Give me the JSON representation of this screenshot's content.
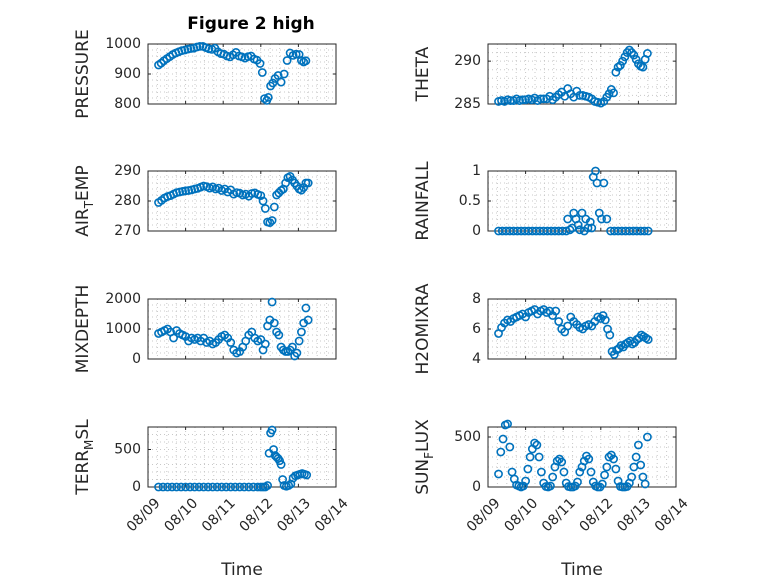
{
  "figure": {
    "title": "Figure 2 high"
  },
  "chart_data": [
    {
      "type": "scatter",
      "panel": "pressure",
      "title": "Figure 2 high",
      "ylabel": "PRESSURE",
      "xlabel": "",
      "ylim": [
        800,
        1000
      ],
      "yticks": [
        800,
        900,
        1000
      ],
      "xlim": [
        0,
        5
      ],
      "xticks": [
        0,
        1,
        2,
        3,
        4,
        5
      ],
      "xticklabels": [],
      "grid": true,
      "x": [
        0.28,
        0.35,
        0.42,
        0.5,
        0.58,
        0.66,
        0.74,
        0.82,
        0.9,
        0.98,
        1.06,
        1.14,
        1.22,
        1.3,
        1.38,
        1.46,
        1.54,
        1.62,
        1.7,
        1.78,
        1.86,
        1.94,
        2.02,
        2.1,
        2.18,
        2.26,
        2.34,
        2.42,
        2.5,
        2.58,
        2.66,
        2.74,
        2.82,
        2.9,
        2.98,
        3.04,
        3.1,
        3.16,
        3.2,
        3.26,
        3.32,
        3.38,
        3.46,
        3.54,
        3.62,
        3.7,
        3.78,
        3.86,
        3.94,
        4.02,
        4.08,
        4.14,
        4.2
      ],
      "y": [
        930,
        936,
        944,
        951,
        958,
        965,
        970,
        974,
        978,
        980,
        983,
        985,
        986,
        990,
        992,
        992,
        988,
        984,
        982,
        986,
        974,
        968,
        966,
        960,
        957,
        964,
        972,
        960,
        957,
        953,
        958,
        960,
        950,
        946,
        935,
        905,
        818,
        812,
        822,
        860,
        870,
        885,
        895,
        873,
        900,
        945,
        970,
        962,
        966,
        965,
        945,
        940,
        944
      ]
    },
    {
      "type": "scatter",
      "panel": "theta",
      "ylabel": "THETA",
      "xlabel": "",
      "ylim": [
        285,
        292
      ],
      "yticks": [
        285,
        290
      ],
      "xlim": [
        0,
        5
      ],
      "xticks": [
        0,
        1,
        2,
        3,
        4,
        5
      ],
      "xticklabels": [],
      "grid": true,
      "x": [
        0.28,
        0.36,
        0.44,
        0.52,
        0.6,
        0.68,
        0.76,
        0.84,
        0.92,
        1.0,
        1.08,
        1.16,
        1.24,
        1.32,
        1.4,
        1.48,
        1.56,
        1.64,
        1.72,
        1.8,
        1.88,
        1.96,
        2.04,
        2.12,
        2.2,
        2.28,
        2.36,
        2.44,
        2.52,
        2.6,
        2.68,
        2.76,
        2.84,
        2.92,
        3.0,
        3.08,
        3.16,
        3.22,
        3.28,
        3.34,
        3.4,
        3.46,
        3.52,
        3.58,
        3.64,
        3.7,
        3.76,
        3.82,
        3.88,
        3.94,
        4.0,
        4.06,
        4.12,
        4.18,
        4.24
      ],
      "y": [
        285.3,
        285.4,
        285.3,
        285.5,
        285.4,
        285.4,
        285.6,
        285.4,
        285.5,
        285.5,
        285.6,
        285.5,
        285.7,
        285.4,
        285.6,
        285.6,
        285.6,
        285.9,
        285.5,
        285.8,
        286.1,
        286.4,
        285.9,
        286.8,
        286.2,
        285.8,
        286.5,
        286.0,
        286.0,
        285.9,
        285.8,
        285.6,
        285.3,
        285.2,
        285.1,
        285.3,
        285.8,
        286.2,
        286.7,
        286.3,
        288.7,
        289.3,
        289.5,
        290.0,
        290.5,
        291.0,
        291.3,
        291.0,
        290.7,
        290.2,
        289.7,
        289.4,
        289.3,
        290.2,
        290.9
      ]
    },
    {
      "type": "scatter",
      "panel": "air_temp",
      "ylabel": "AIR_TEMP",
      "xlabel": "",
      "ylim": [
        270,
        290
      ],
      "yticks": [
        270,
        280,
        290
      ],
      "xlim": [
        0,
        5
      ],
      "xticks": [
        0,
        1,
        2,
        3,
        4,
        5
      ],
      "xticklabels": [],
      "grid": true,
      "x": [
        0.28,
        0.36,
        0.44,
        0.52,
        0.6,
        0.68,
        0.76,
        0.84,
        0.92,
        1.0,
        1.08,
        1.16,
        1.24,
        1.32,
        1.4,
        1.48,
        1.56,
        1.64,
        1.72,
        1.8,
        1.88,
        1.96,
        2.04,
        2.12,
        2.2,
        2.28,
        2.36,
        2.44,
        2.52,
        2.6,
        2.68,
        2.76,
        2.84,
        2.92,
        3.0,
        3.06,
        3.12,
        3.18,
        3.24,
        3.3,
        3.36,
        3.42,
        3.48,
        3.54,
        3.6,
        3.66,
        3.72,
        3.78,
        3.84,
        3.9,
        3.96,
        4.02,
        4.08,
        4.14,
        4.2,
        4.26
      ],
      "y": [
        279.5,
        280.2,
        281.0,
        281.5,
        281.8,
        282.3,
        282.8,
        283.0,
        283.2,
        283.4,
        283.5,
        283.7,
        284.0,
        284.2,
        284.6,
        285.0,
        284.8,
        284.3,
        284.7,
        284.0,
        284.3,
        283.5,
        284.0,
        283.0,
        283.7,
        282.3,
        282.8,
        282.6,
        282.0,
        282.3,
        281.6,
        282.5,
        282.7,
        282.2,
        281.8,
        280.0,
        277.5,
        273.0,
        272.8,
        273.5,
        278.0,
        282.0,
        282.7,
        283.5,
        284.0,
        286.0,
        287.8,
        288.2,
        287.0,
        286.0,
        285.0,
        284.0,
        283.6,
        284.5,
        286.0,
        286.0
      ]
    },
    {
      "type": "scatter",
      "panel": "rainfall",
      "ylabel": "RAINFALL",
      "xlabel": "",
      "ylim": [
        0,
        1
      ],
      "yticks": [
        0,
        0.5,
        1
      ],
      "xlim": [
        0,
        5
      ],
      "xticks": [
        0,
        1,
        2,
        3,
        4,
        5
      ],
      "xticklabels": [],
      "grid": true,
      "x": [
        0.28,
        0.38,
        0.48,
        0.58,
        0.68,
        0.78,
        0.88,
        0.98,
        1.08,
        1.18,
        1.28,
        1.38,
        1.48,
        1.58,
        1.68,
        1.78,
        1.88,
        1.98,
        2.08,
        2.12,
        2.18,
        2.24,
        2.28,
        2.34,
        2.4,
        2.44,
        2.5,
        2.56,
        2.6,
        2.66,
        2.72,
        2.76,
        2.8,
        2.86,
        2.9,
        2.96,
        3.02,
        3.08,
        3.16,
        3.26,
        3.36,
        3.46,
        3.56,
        3.66,
        3.76,
        3.86,
        3.96,
        4.06,
        4.16,
        4.26
      ],
      "y": [
        0,
        0,
        0,
        0,
        0,
        0,
        0,
        0,
        0,
        0,
        0,
        0,
        0,
        0,
        0,
        0,
        0,
        0,
        0,
        0.2,
        0.02,
        0.05,
        0.3,
        0.2,
        0.1,
        0.02,
        0.3,
        0.0,
        0.2,
        0.05,
        0.15,
        0.05,
        0.9,
        1.0,
        0.8,
        0.3,
        0.2,
        0.8,
        0.2,
        0,
        0,
        0,
        0,
        0,
        0,
        0,
        0,
        0,
        0,
        0
      ]
    },
    {
      "type": "scatter",
      "panel": "mixdepth",
      "ylabel": "MIXDEPTH",
      "xlabel": "",
      "ylim": [
        0,
        2000
      ],
      "yticks": [
        0,
        1000,
        2000
      ],
      "xlim": [
        0,
        5
      ],
      "xticks": [
        0,
        1,
        2,
        3,
        4,
        5
      ],
      "xticklabels": [],
      "grid": true,
      "x": [
        0.28,
        0.36,
        0.44,
        0.52,
        0.6,
        0.68,
        0.76,
        0.84,
        0.92,
        1.0,
        1.08,
        1.16,
        1.24,
        1.32,
        1.4,
        1.48,
        1.56,
        1.64,
        1.72,
        1.8,
        1.88,
        1.96,
        2.04,
        2.12,
        2.2,
        2.28,
        2.36,
        2.44,
        2.52,
        2.6,
        2.68,
        2.76,
        2.84,
        2.92,
        3.0,
        3.06,
        3.12,
        3.18,
        3.24,
        3.3,
        3.36,
        3.42,
        3.48,
        3.54,
        3.6,
        3.66,
        3.72,
        3.78,
        3.84,
        3.9,
        3.96,
        4.02,
        4.08,
        4.14,
        4.2,
        4.26
      ],
      "y": [
        850,
        900,
        950,
        1000,
        900,
        700,
        950,
        850,
        800,
        750,
        600,
        700,
        650,
        700,
        600,
        700,
        550,
        600,
        500,
        550,
        650,
        750,
        800,
        700,
        550,
        300,
        200,
        250,
        400,
        600,
        800,
        900,
        700,
        600,
        650,
        300,
        500,
        1100,
        1300,
        1900,
        1200,
        900,
        800,
        400,
        300,
        250,
        250,
        300,
        400,
        100,
        200,
        600,
        900,
        1200,
        1700,
        1300
      ]
    },
    {
      "type": "scatter",
      "panel": "h2omixra",
      "ylabel": "H2OMIXRA",
      "xlabel": "",
      "ylim": [
        4,
        8
      ],
      "yticks": [
        4,
        6,
        8
      ],
      "xlim": [
        0,
        5
      ],
      "xticks": [
        0,
        1,
        2,
        3,
        4,
        5
      ],
      "xticklabels": [],
      "grid": true,
      "x": [
        0.28,
        0.36,
        0.44,
        0.52,
        0.6,
        0.68,
        0.76,
        0.84,
        0.92,
        1.0,
        1.08,
        1.16,
        1.24,
        1.32,
        1.4,
        1.48,
        1.56,
        1.64,
        1.72,
        1.8,
        1.88,
        1.96,
        2.04,
        2.12,
        2.2,
        2.28,
        2.36,
        2.44,
        2.52,
        2.6,
        2.68,
        2.76,
        2.84,
        2.92,
        3.0,
        3.06,
        3.12,
        3.18,
        3.24,
        3.3,
        3.36,
        3.42,
        3.48,
        3.54,
        3.6,
        3.66,
        3.72,
        3.78,
        3.84,
        3.9,
        3.96,
        4.02,
        4.08,
        4.14,
        4.2,
        4.26
      ],
      "y": [
        5.7,
        6.1,
        6.4,
        6.6,
        6.5,
        6.7,
        6.8,
        6.9,
        7.0,
        6.8,
        7.1,
        7.2,
        7.3,
        7.0,
        7.2,
        7.3,
        7.1,
        7.2,
        6.9,
        7.2,
        6.5,
        6.0,
        5.8,
        6.2,
        6.8,
        6.5,
        6.3,
        6.1,
        6.0,
        6.2,
        6.3,
        6.2,
        6.5,
        6.8,
        6.7,
        6.9,
        6.6,
        6.0,
        5.6,
        4.5,
        4.3,
        4.6,
        4.7,
        4.9,
        4.8,
        5.0,
        5.1,
        5.2,
        5.0,
        5.1,
        5.3,
        5.4,
        5.6,
        5.5,
        5.4,
        5.3
      ]
    },
    {
      "type": "scatter",
      "panel": "terr_msl",
      "ylabel": "TERR_MSL",
      "xlabel": "Time",
      "ylim": [
        0,
        800
      ],
      "yticks": [
        0,
        500
      ],
      "xlim": [
        0,
        5
      ],
      "xticks": [
        0,
        1,
        2,
        3,
        4,
        5
      ],
      "xticklabels": [
        "08/09",
        "08/10",
        "08/11",
        "08/12",
        "08/13",
        "08/14"
      ],
      "grid": true,
      "x": [
        0.28,
        0.4,
        0.52,
        0.64,
        0.76,
        0.88,
        1.0,
        1.12,
        1.24,
        1.36,
        1.48,
        1.6,
        1.72,
        1.84,
        1.96,
        2.08,
        2.2,
        2.32,
        2.44,
        2.56,
        2.68,
        2.8,
        2.92,
        3.0,
        3.06,
        3.12,
        3.18,
        3.22,
        3.26,
        3.3,
        3.34,
        3.38,
        3.42,
        3.46,
        3.5,
        3.54,
        3.58,
        3.62,
        3.68,
        3.74,
        3.8,
        3.86,
        3.92,
        3.98,
        4.04,
        4.1,
        4.16,
        4.22
      ],
      "y": [
        0,
        0,
        0,
        0,
        0,
        0,
        0,
        0,
        0,
        0,
        0,
        0,
        0,
        0,
        0,
        0,
        0,
        0,
        0,
        0,
        0,
        0,
        0,
        0,
        0,
        0,
        20,
        450,
        720,
        760,
        500,
        420,
        400,
        380,
        350,
        300,
        100,
        20,
        10,
        20,
        40,
        120,
        150,
        160,
        170,
        180,
        170,
        160
      ]
    },
    {
      "type": "scatter",
      "panel": "sun_flux",
      "ylabel": "SUN_FLUX",
      "xlabel": "Time",
      "ylim": [
        0,
        600
      ],
      "yticks": [
        0,
        500
      ],
      "xlim": [
        0,
        5
      ],
      "xticks": [
        0,
        1,
        2,
        3,
        4,
        5
      ],
      "xticklabels": [
        "08/09",
        "08/10",
        "08/11",
        "08/12",
        "08/13",
        "08/14"
      ],
      "grid": true,
      "x": [
        0.28,
        0.34,
        0.4,
        0.46,
        0.52,
        0.58,
        0.64,
        0.7,
        0.76,
        0.82,
        0.88,
        0.94,
        1.0,
        1.06,
        1.12,
        1.18,
        1.24,
        1.3,
        1.36,
        1.42,
        1.48,
        1.54,
        1.6,
        1.66,
        1.72,
        1.78,
        1.84,
        1.9,
        1.96,
        2.02,
        2.08,
        2.14,
        2.2,
        2.26,
        2.32,
        2.38,
        2.44,
        2.5,
        2.56,
        2.62,
        2.68,
        2.74,
        2.8,
        2.86,
        2.92,
        2.98,
        3.04,
        3.1,
        3.16,
        3.22,
        3.28,
        3.34,
        3.4,
        3.46,
        3.52,
        3.58,
        3.64,
        3.7,
        3.76,
        3.82,
        3.88,
        3.94,
        4.0,
        4.06,
        4.12,
        4.18,
        4.24
      ],
      "y": [
        130,
        350,
        480,
        620,
        630,
        400,
        150,
        80,
        20,
        10,
        0,
        10,
        60,
        180,
        300,
        380,
        440,
        420,
        300,
        150,
        40,
        5,
        0,
        10,
        100,
        200,
        260,
        280,
        250,
        150,
        40,
        5,
        0,
        0,
        10,
        50,
        150,
        200,
        260,
        310,
        280,
        150,
        50,
        10,
        0,
        0,
        30,
        120,
        200,
        300,
        320,
        280,
        180,
        60,
        5,
        0,
        0,
        5,
        40,
        100,
        200,
        300,
        420,
        220,
        100,
        30,
        500
      ]
    }
  ]
}
